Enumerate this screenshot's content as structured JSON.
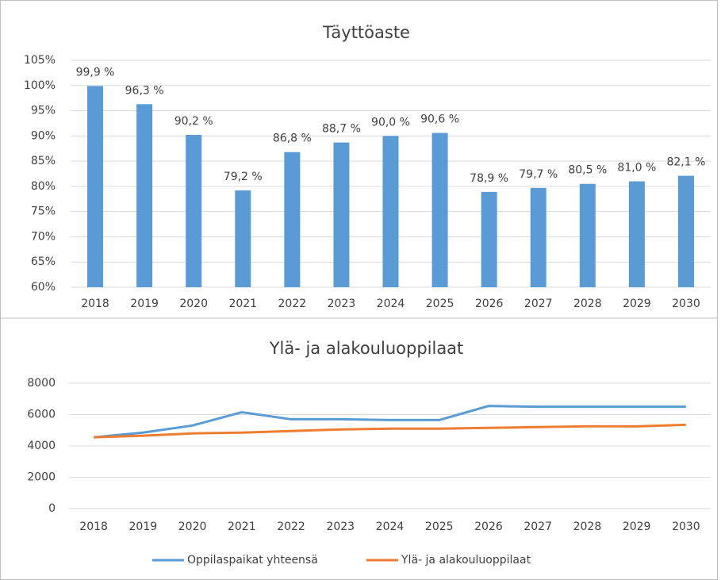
{
  "chart_data": [
    {
      "type": "bar",
      "title": "Täyttöaste",
      "color": "#5b9bd5",
      "grid": true,
      "categories": [
        "2018",
        "2019",
        "2020",
        "2021",
        "2022",
        "2023",
        "2024",
        "2025",
        "2026",
        "2027",
        "2028",
        "2029",
        "2030"
      ],
      "values": [
        99.9,
        96.3,
        90.2,
        79.2,
        86.8,
        88.7,
        90.0,
        90.6,
        78.9,
        79.7,
        80.5,
        81.0,
        82.1
      ],
      "value_labels": [
        "99,9 %",
        "96,3 %",
        "90,2 %",
        "79,2 %",
        "86,8 %",
        "88,7 %",
        "90,0 %",
        "90,6 %",
        "78,9 %",
        "79,7 %",
        "80,5 %",
        "81,0 %",
        "82,1 %"
      ],
      "ylim": [
        60,
        105
      ],
      "yticks": [
        {
          "value": 60,
          "label": "60%"
        },
        {
          "value": 65,
          "label": "65%"
        },
        {
          "value": 70,
          "label": "70%"
        },
        {
          "value": 75,
          "label": "75%"
        },
        {
          "value": 80,
          "label": "80%"
        },
        {
          "value": 85,
          "label": "85%"
        },
        {
          "value": 90,
          "label": "90%"
        },
        {
          "value": 95,
          "label": "95%"
        },
        {
          "value": 100,
          "label": "100%"
        },
        {
          "value": 105,
          "label": "105%"
        }
      ]
    },
    {
      "type": "line",
      "title": "Ylä- ja alakouluoppilaat",
      "grid": true,
      "legend": "bottom",
      "categories": [
        "2018",
        "2019",
        "2020",
        "2021",
        "2022",
        "2023",
        "2024",
        "2025",
        "2026",
        "2027",
        "2028",
        "2029",
        "2030"
      ],
      "series": [
        {
          "name": "Oppilaspaikat yhteensä",
          "color": "#5b9bd5",
          "values": [
            4550,
            4850,
            5300,
            6150,
            5700,
            5700,
            5650,
            5650,
            6550,
            6500,
            6500,
            6500,
            6500
          ]
        },
        {
          "name": "Ylä- ja alakouluoppilaat",
          "color": "#ed7d31",
          "values": [
            4550,
            4650,
            4800,
            4850,
            4950,
            5050,
            5100,
            5100,
            5150,
            5200,
            5250,
            5250,
            5350
          ]
        }
      ],
      "ylim": [
        0,
        8000
      ],
      "yticks": [
        0,
        2000,
        4000,
        6000,
        8000
      ]
    }
  ]
}
